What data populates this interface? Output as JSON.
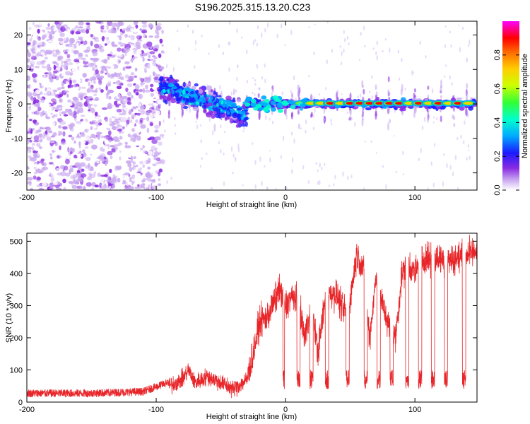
{
  "title": "S196.2025.315.13.20.C23",
  "chart_data": [
    {
      "type": "heatmap",
      "xlabel": "Height of straight line (km)",
      "ylabel": "Frequency (Hz)",
      "xlim": [
        -200,
        148
      ],
      "ylim": [
        -25,
        24
      ],
      "xticks": [
        -200,
        -100,
        0,
        100
      ],
      "yticks": [
        -20,
        -10,
        0,
        10,
        20
      ],
      "colorbar": {
        "label": "Normalized spectral amplitude",
        "range": [
          0,
          1
        ],
        "ticks": [
          0.0,
          0.2,
          0.4,
          0.6,
          0.8
        ],
        "colors": [
          "#ffffff",
          "#c9a8f0",
          "#8a2be2",
          "#1a1aff",
          "#00aaff",
          "#00ffcc",
          "#33ff33",
          "#ccff00",
          "#ffcc00",
          "#ff6600",
          "#ff0000",
          "#ff00ff"
        ]
      },
      "regions": [
        {
          "x": [
            -200,
            -95
          ],
          "description_level": 0.15,
          "freq_spread": [
            -25,
            24
          ]
        },
        {
          "x": [
            -95,
            -30
          ],
          "description_level": 0.25,
          "freq_center": [
            5,
            -3
          ]
        },
        {
          "x": [
            -30,
            148
          ],
          "description_level": 0.9,
          "freq_center": [
            0,
            0
          ]
        }
      ]
    },
    {
      "type": "line",
      "xlabel": "Height of straight line (km)",
      "ylabel": "SNR (10 * v/v)",
      "xlim": [
        -200,
        148
      ],
      "ylim": [
        0,
        525
      ],
      "xticks": [
        -200,
        -100,
        0,
        100
      ],
      "yticks": [
        0,
        100,
        200,
        300,
        400,
        500
      ],
      "color": "#e8262a",
      "series": [
        {
          "x": [
            -200,
            -150,
            -110,
            -90,
            -80,
            -75,
            -70,
            -60,
            -50,
            -40,
            -30,
            -25,
            -20,
            -15,
            -10,
            -5,
            0,
            5,
            10,
            15,
            20,
            25,
            30,
            35,
            40,
            45,
            50,
            55,
            60,
            65,
            70,
            75,
            80,
            85,
            90,
            95,
            100,
            105,
            110,
            115,
            120,
            125,
            130,
            135,
            140,
            148
          ],
          "values": [
            15,
            15,
            20,
            50,
            70,
            100,
            60,
            80,
            60,
            40,
            70,
            150,
            250,
            260,
            300,
            350,
            300,
            330,
            310,
            200,
            320,
            150,
            300,
            340,
            330,
            280,
            320,
            460,
            420,
            200,
            390,
            300,
            240,
            200,
            400,
            430,
            400,
            440,
            450,
            440,
            450,
            440,
            445,
            450,
            460,
            470
          ]
        }
      ]
    }
  ]
}
